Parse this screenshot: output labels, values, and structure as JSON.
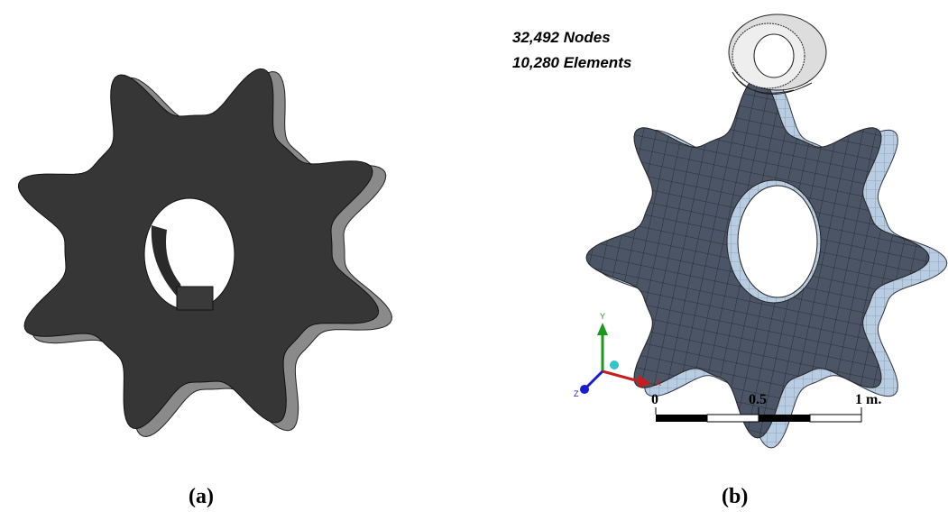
{
  "panels": [
    {
      "label": "(a)"
    },
    {
      "label": "(b)",
      "annotations": [
        "32,492 Nodes",
        "10,280 Elements"
      ],
      "triad": [
        "Y",
        "X",
        "Z"
      ],
      "scale_bar": [
        "0",
        "0.5",
        "1 m."
      ]
    }
  ]
}
